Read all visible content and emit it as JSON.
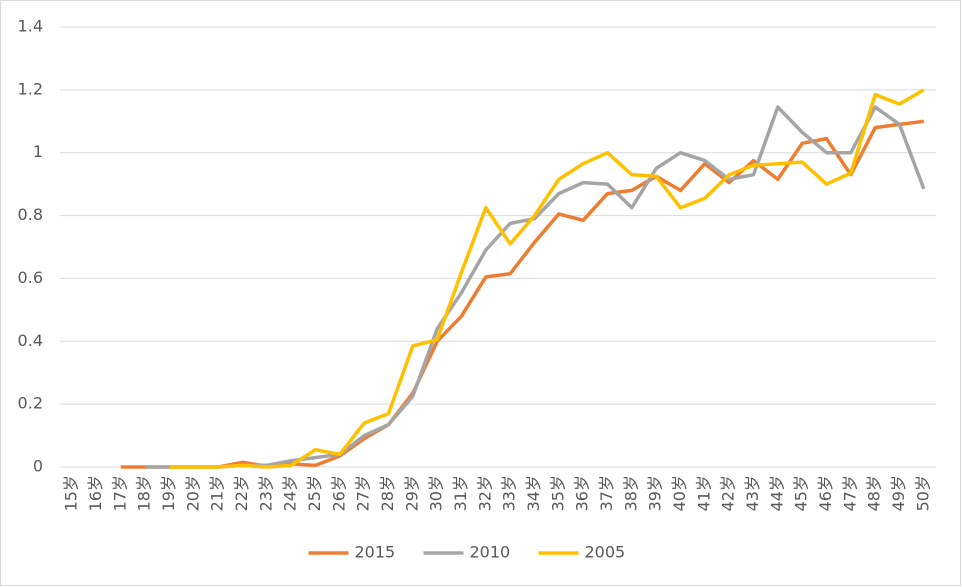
{
  "chart_data": {
    "type": "line",
    "categories": [
      "15岁",
      "16岁",
      "17岁",
      "18岁",
      "19岁",
      "20岁",
      "21岁",
      "22岁",
      "23岁",
      "24岁",
      "25岁",
      "26岁",
      "27岁",
      "28岁",
      "29岁",
      "30岁",
      "31岁",
      "32岁",
      "33岁",
      "34岁",
      "35岁",
      "36岁",
      "37岁",
      "38岁",
      "39岁",
      "40岁",
      "41岁",
      "42岁",
      "43岁",
      "44岁",
      "45岁",
      "46岁",
      "47岁",
      "48岁",
      "49岁",
      "50岁"
    ],
    "series": [
      {
        "name": "2015",
        "color": "#ed7d31",
        "values": [
          null,
          null,
          0,
          0,
          0,
          0,
          0,
          0.015,
          0.003,
          0.01,
          0.005,
          0.035,
          0.09,
          0.135,
          0.235,
          0.4,
          0.48,
          0.605,
          0.615,
          0.715,
          0.805,
          0.785,
          0.87,
          0.88,
          0.925,
          0.88,
          0.965,
          0.905,
          0.975,
          0.915,
          1.03,
          1.045,
          0.93,
          1.08,
          1.09,
          1.1
        ]
      },
      {
        "name": "2010",
        "color": "#a5a5a5",
        "values": [
          null,
          null,
          null,
          0,
          0,
          0,
          0,
          0.005,
          0.005,
          0.02,
          0.03,
          0.04,
          0.1,
          0.135,
          0.225,
          0.44,
          0.555,
          0.69,
          0.775,
          0.79,
          0.87,
          0.905,
          0.9,
          0.825,
          0.95,
          1.0,
          0.975,
          0.915,
          0.93,
          1.145,
          1.065,
          1.0,
          1.0,
          1.145,
          1.09,
          0.885
        ]
      },
      {
        "name": "2005",
        "color": "#ffc000",
        "values": [
          null,
          null,
          null,
          null,
          0,
          0,
          0,
          0.005,
          0,
          0.005,
          0.055,
          0.04,
          0.14,
          0.17,
          0.385,
          0.405,
          0.62,
          0.825,
          0.71,
          0.8,
          0.915,
          0.965,
          1.0,
          0.93,
          0.925,
          0.825,
          0.855,
          0.93,
          0.96,
          0.965,
          0.97,
          0.9,
          0.935,
          1.185,
          1.155,
          1.2
        ]
      }
    ],
    "ylim": [
      0,
      1.4
    ],
    "yticks": [
      0,
      0.2,
      0.4,
      0.6,
      0.8,
      1,
      1.2,
      1.4
    ],
    "grid": true,
    "legend": "bottom"
  }
}
